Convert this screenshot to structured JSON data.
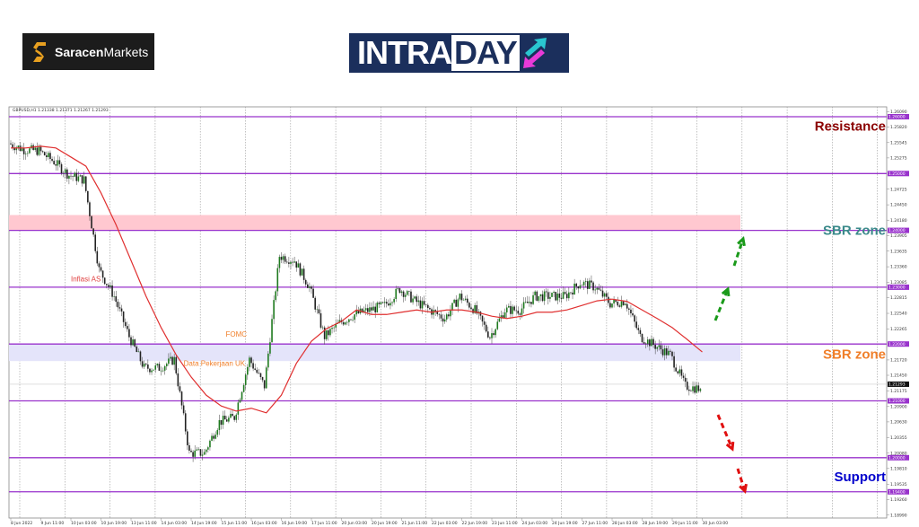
{
  "logos": {
    "saracen": {
      "bold": "Saracen",
      "regular": "Markets"
    },
    "intraday": {
      "part1": "INTRA",
      "part2": "DAY"
    }
  },
  "chart_header": "GBPUSD,H1  1.21338 1.21371 1.21267 1.21293",
  "chart_data": {
    "type": "candlestick",
    "symbol": "GBPUSD",
    "timeframe": "H1",
    "ohlc_last": {
      "open": 1.21338,
      "high": 1.21371,
      "low": 1.21267,
      "close": 1.21293
    },
    "current_price_label": "1.21293",
    "ylim": [
      1.1899,
      1.2609
    ],
    "x_tick_labels": [
      "8 Jun 2022",
      "9 Jun 11:00",
      "10 Jun 03:00",
      "10 Jun 19:00",
      "13 Jun 11:00",
      "14 Jun 03:00",
      "14 Jun 19:00",
      "15 Jun 11:00",
      "16 Jun 03:00",
      "16 Jun 19:00",
      "17 Jun 11:00",
      "20 Jun 03:00",
      "20 Jun 19:00",
      "21 Jun 11:00",
      "22 Jun 03:00",
      "22 Jun 19:00",
      "23 Jun 11:00",
      "24 Jun 03:00",
      "24 Jun 19:00",
      "27 Jun 11:00",
      "28 Jun 03:00",
      "28 Jun 19:00",
      "29 Jun 11:00",
      "30 Jun 03:00"
    ],
    "y_tick_labels": [
      "1.26090",
      "1.25820",
      "1.25545",
      "1.25275",
      "1.24725",
      "1.24450",
      "1.24180",
      "1.23905",
      "1.23635",
      "1.23360",
      "1.23085",
      "1.22815",
      "1.22540",
      "1.22265",
      "1.21720",
      "1.21450",
      "1.21175",
      "1.20900",
      "1.20630",
      "1.20355",
      "1.20080",
      "1.19810",
      "1.19535",
      "1.19260",
      "1.18990"
    ],
    "close_series": [
      1.2553,
      1.2542,
      1.254,
      1.2521,
      1.2497,
      1.2489,
      1.2331,
      1.2284,
      1.2213,
      1.2158,
      1.2158,
      1.2173,
      1.2008,
      1.2008,
      1.2063,
      1.2071,
      1.2173,
      1.2126,
      1.2355,
      1.2347,
      1.23,
      1.2213,
      1.2237,
      1.2252,
      1.226,
      1.2268,
      1.2297,
      1.2276,
      1.226,
      1.2245,
      1.2284,
      1.226,
      1.2213,
      1.226,
      1.226,
      1.2284,
      1.2284,
      1.2284,
      1.2308,
      1.23,
      1.2271,
      1.2276,
      1.2213,
      1.2197,
      1.2181,
      1.2126,
      1.2121
    ],
    "moving_average": {
      "color": "#e03030",
      "values": [
        1.2545,
        1.2545,
        1.2548,
        1.2545,
        1.2529,
        1.2513,
        1.2466,
        1.241,
        1.2347,
        1.2284,
        1.2229,
        1.2181,
        1.2142,
        1.211,
        1.2091,
        1.2082,
        1.2087,
        1.2079,
        1.211,
        1.2166,
        1.2205,
        1.2227,
        1.224,
        1.226,
        1.2252,
        1.2252,
        1.2256,
        1.226,
        1.2256,
        1.226,
        1.226,
        1.2256,
        1.2249,
        1.2245,
        1.2249,
        1.2256,
        1.2256,
        1.226,
        1.2268,
        1.2276,
        1.2279,
        1.2275,
        1.226,
        1.2245,
        1.2229,
        1.2208,
        1.2186
      ]
    },
    "levels": [
      {
        "price": 1.26,
        "label": "1.26000"
      },
      {
        "price": 1.25,
        "label": "1.25000"
      },
      {
        "price": 1.24,
        "label": "1.24000"
      },
      {
        "price": 1.23,
        "label": "1.23000"
      },
      {
        "price": 1.22,
        "label": "1.22000"
      },
      {
        "price": 1.21,
        "label": "1.21000"
      },
      {
        "price": 1.2,
        "label": "1.20000"
      },
      {
        "price": 1.194,
        "label": "1.19400"
      }
    ],
    "level_color": "#9933cc",
    "zones": [
      {
        "from": 1.24,
        "to": 1.2427,
        "color": "#ffc8d0"
      },
      {
        "from": 1.217,
        "to": 1.22,
        "color": "#e4e4fa"
      }
    ],
    "zone_labels": [
      {
        "text": "Resistance",
        "color": "#8b0000",
        "price": 1.2585
      },
      {
        "text": "SBR zone",
        "color": "#3a8a8a",
        "price": 1.2402
      },
      {
        "text": "SBR zone",
        "color": "#f07f2a",
        "price": 1.2184
      },
      {
        "text": "Support",
        "color": "#0000cc",
        "price": 1.1968
      }
    ],
    "annotations": [
      {
        "text": "Inflasi AS",
        "color": "#e04040",
        "index": 4,
        "price": 1.231
      },
      {
        "text": "FOMC",
        "color": "#f07f2a",
        "index": 14.3,
        "price": 1.2213
      },
      {
        "text": "Data Pekerjaan UK",
        "color": "#f07f2a",
        "index": 11.5,
        "price": 1.2162
      }
    ],
    "scenario_arrows": [
      {
        "direction": "up",
        "color": "#1a9a1a"
      },
      {
        "direction": "down",
        "color": "#e01010"
      }
    ],
    "up_candle_color": "#1f7a1f",
    "down_candle_color": "#222222"
  }
}
